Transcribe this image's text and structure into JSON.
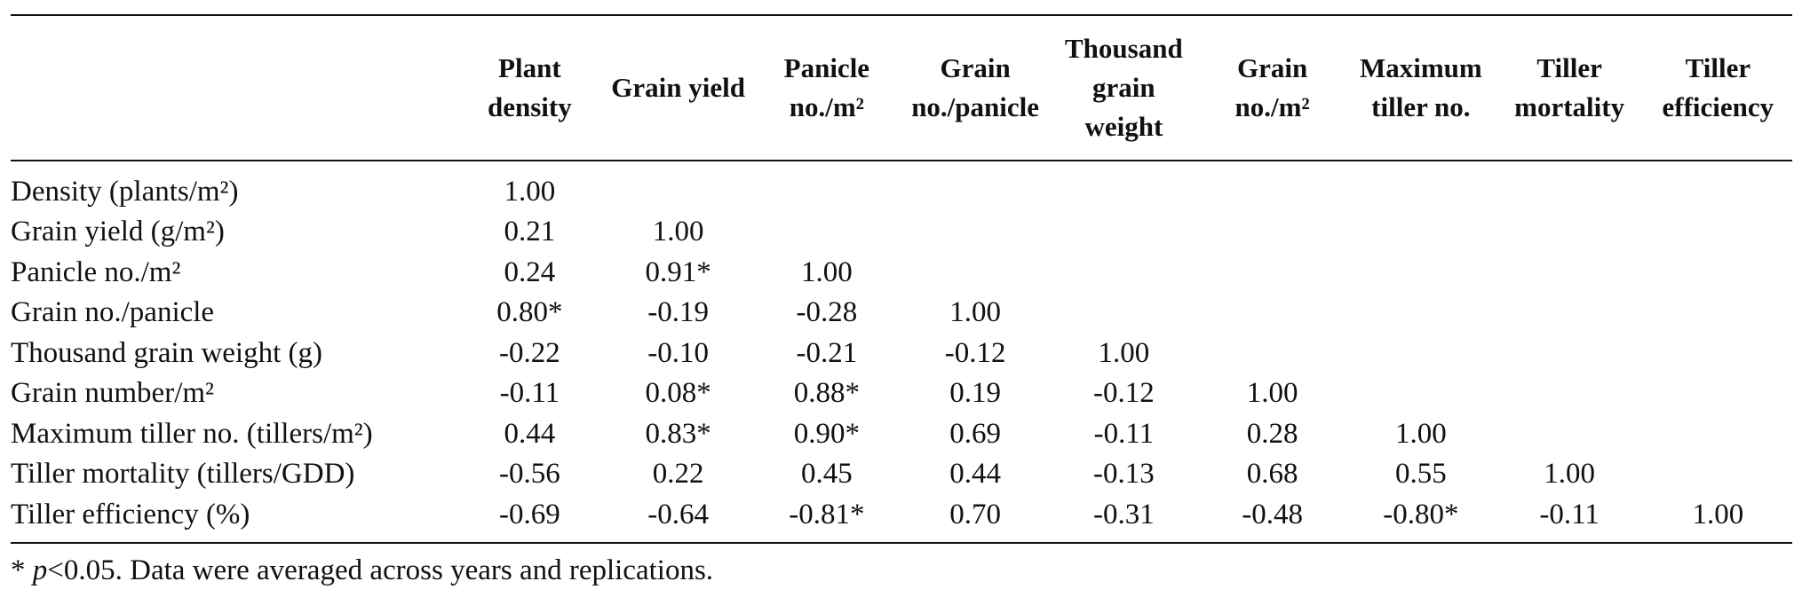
{
  "table": {
    "columns": [
      "",
      "Plant\ndensity",
      "Grain yield",
      "Panicle\nno./m²",
      "Grain\nno./panicle",
      "Thousand\ngrain\nweight",
      "Grain\nno./m²",
      "Maximum\ntiller no.",
      "Tiller\nmortality",
      "Tiller\nefficiency"
    ],
    "rows": [
      {
        "label": "Density (plants/m²)",
        "values": [
          "1.00",
          "",
          "",
          "",
          "",
          "",
          "",
          "",
          ""
        ]
      },
      {
        "label": "Grain yield (g/m²)",
        "values": [
          "0.21",
          "1.00",
          "",
          "",
          "",
          "",
          "",
          "",
          ""
        ]
      },
      {
        "label": "Panicle no./m²",
        "values": [
          "0.24",
          "0.91*",
          "1.00",
          "",
          "",
          "",
          "",
          "",
          ""
        ]
      },
      {
        "label": "Grain no./panicle",
        "values": [
          "0.80*",
          "-0.19",
          "-0.28",
          "1.00",
          "",
          "",
          "",
          "",
          ""
        ]
      },
      {
        "label": "Thousand grain weight (g)",
        "values": [
          "-0.22",
          "-0.10",
          "-0.21",
          "-0.12",
          "1.00",
          "",
          "",
          "",
          ""
        ]
      },
      {
        "label": "Grain number/m²",
        "values": [
          "-0.11",
          "0.08*",
          "0.88*",
          "0.19",
          "-0.12",
          "1.00",
          "",
          "",
          ""
        ]
      },
      {
        "label": "Maximum tiller no. (tillers/m²)",
        "values": [
          "0.44",
          "0.83*",
          "0.90*",
          "0.69",
          "-0.11",
          "0.28",
          "1.00",
          "",
          ""
        ]
      },
      {
        "label": "Tiller mortality (tillers/GDD)",
        "values": [
          "-0.56",
          "0.22",
          "0.45",
          "0.44",
          "-0.13",
          "0.68",
          "0.55",
          "1.00",
          ""
        ]
      },
      {
        "label": "Tiller efficiency (%)",
        "values": [
          "-0.69",
          "-0.64",
          "-0.81*",
          "0.70",
          "-0.31",
          "-0.48",
          "-0.80*",
          "-0.11",
          "1.00"
        ]
      }
    ]
  },
  "footnote": {
    "star": "* ",
    "p": "p",
    "rest": "<0.05. Data were averaged across years and replications."
  }
}
